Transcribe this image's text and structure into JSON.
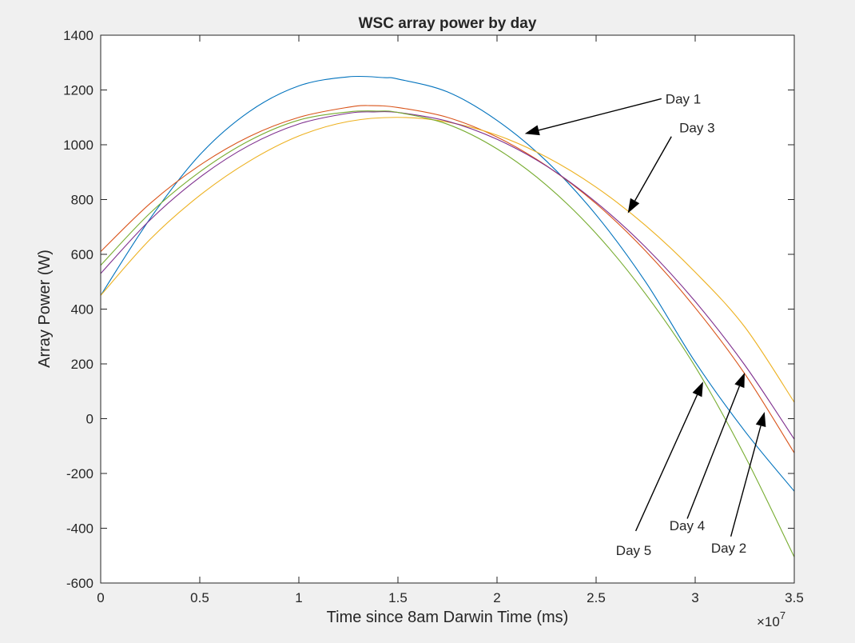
{
  "chart_data": {
    "type": "line",
    "title": "WSC array power by day",
    "xlabel": "Time since 8am Darwin Time (ms)",
    "ylabel": "Array Power (W)",
    "xlim": [
      0,
      35000000
    ],
    "ylim": [
      -600,
      1400
    ],
    "x_tick_values": [
      0,
      0.5,
      1,
      1.5,
      2,
      2.5,
      3,
      3.5
    ],
    "x_tick_labels": [
      "0",
      "0.5",
      "1",
      "1.5",
      "2",
      "2.5",
      "3",
      "3.5"
    ],
    "x_exponent_base": "×10",
    "x_exponent_power": "7",
    "y_tick_values": [
      -600,
      -400,
      -200,
      0,
      200,
      400,
      600,
      800,
      1000,
      1200,
      1400
    ],
    "y_tick_labels": [
      "-600",
      "-400",
      "-200",
      "0",
      "200",
      "400",
      "600",
      "800",
      "1000",
      "1200",
      "1400"
    ],
    "grid": false,
    "legend": "none",
    "series": [
      {
        "label": "Day 1",
        "color": "#0072bd",
        "x": [
          0,
          2500000,
          5000000,
          7500000,
          10000000,
          12500000,
          14300000,
          15000000,
          17500000,
          20000000,
          22500000,
          25000000,
          27500000,
          30000000,
          32500000,
          35000000
        ],
        "y": [
          450,
          731,
          963,
          1121,
          1215,
          1248,
          1245,
          1240,
          1193,
          1089,
          940,
          744,
          499,
          207,
          -45,
          -265
        ]
      },
      {
        "label": "Day 2",
        "color": "#d95319",
        "x": [
          0,
          2500000,
          5000000,
          7500000,
          10000000,
          12500000,
          13600000,
          15000000,
          17500000,
          20000000,
          22500000,
          25000000,
          27500000,
          30000000,
          32500000,
          35000000
        ],
        "y": [
          610,
          786,
          925,
          1030,
          1100,
          1137,
          1143,
          1136,
          1100,
          1028,
          923,
          785,
          612,
          405,
          164,
          -125
        ]
      },
      {
        "label": "Day 3",
        "color": "#edb120",
        "x": [
          0,
          2500000,
          5000000,
          7500000,
          10000000,
          12500000,
          15000000,
          17500000,
          20000000,
          22500000,
          25000000,
          27500000,
          30000000,
          32500000,
          35000000
        ],
        "y": [
          450,
          655,
          815,
          940,
          1032,
          1085,
          1100,
          1083,
          1035,
          955,
          845,
          705,
          535,
          335,
          60
        ]
      },
      {
        "label": "Day 4",
        "color": "#7e2f8e",
        "x": [
          0,
          2500000,
          5000000,
          7500000,
          10000000,
          12500000,
          13800000,
          15000000,
          17500000,
          20000000,
          22500000,
          25000000,
          27500000,
          30000000,
          32500000,
          35000000
        ],
        "y": [
          530,
          726,
          881,
          998,
          1076,
          1115,
          1120,
          1118,
          1086,
          1020,
          922,
          790,
          626,
          428,
          196,
          -75
        ]
      },
      {
        "label": "Day 5",
        "color": "#77ac30",
        "x": [
          0,
          2500000,
          5000000,
          7500000,
          10000000,
          12500000,
          14000000,
          15000000,
          17500000,
          20000000,
          22500000,
          25000000,
          27500000,
          30000000,
          32500000,
          35000000
        ],
        "y": [
          560,
          751,
          901,
          1015,
          1090,
          1120,
          1123,
          1118,
          1075,
          985,
          852,
          676,
          455,
          190,
          -135,
          -505
        ]
      }
    ],
    "annotations": [
      {
        "text": "Day 1",
        "text_x": 28500000,
        "text_y": 1168,
        "arrow_from": [
          28300000,
          1168
        ],
        "arrow_to": [
          21400000,
          1040
        ]
      },
      {
        "text": "Day 3",
        "text_x": 29200000,
        "text_y": 1063,
        "arrow_from": [
          28800000,
          1030
        ],
        "arrow_to": [
          26600000,
          750
        ]
      },
      {
        "text": "Day 5",
        "text_x": 26000000,
        "text_y": -480,
        "arrow_from": [
          27000000,
          -410
        ],
        "arrow_to": [
          30400000,
          135
        ]
      },
      {
        "text": "Day 4",
        "text_x": 28700000,
        "text_y": -390,
        "arrow_from": [
          29600000,
          -365
        ],
        "arrow_to": [
          32500000,
          168
        ]
      },
      {
        "text": "Day 2",
        "text_x": 30800000,
        "text_y": -472,
        "arrow_from": [
          31800000,
          -430
        ],
        "arrow_to": [
          33500000,
          25
        ]
      }
    ]
  }
}
